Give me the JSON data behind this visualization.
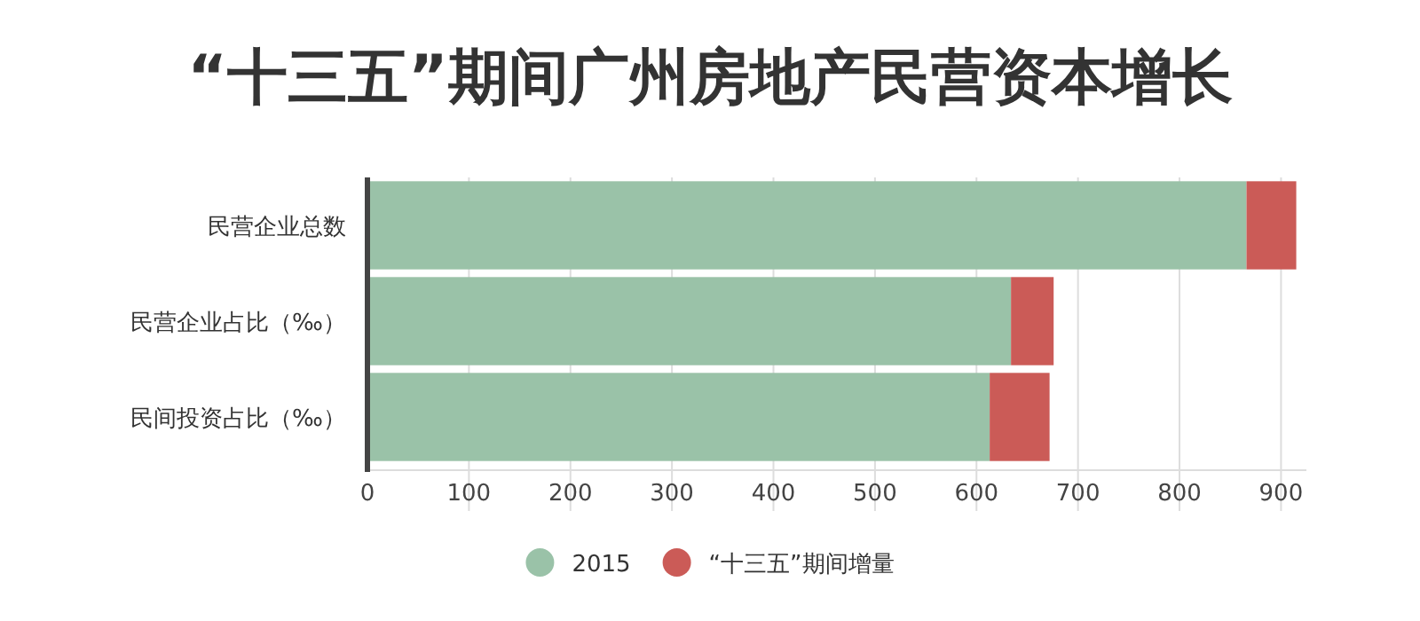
{
  "chart_data": {
    "type": "bar",
    "orientation": "horizontal",
    "stacked": true,
    "title": "“十三五”期间广州房地产民营资本增长",
    "categories": [
      "民营企业总数",
      "民营企业占比（‰）",
      "民间投资占比（‰）"
    ],
    "series": [
      {
        "name": "2015",
        "color": "#9ac2a8",
        "values": [
          866,
          634,
          613
        ]
      },
      {
        "name": "“十三五”期间增量",
        "color": "#cb5b57",
        "values": [
          49,
          42,
          59
        ]
      }
    ],
    "xlim": [
      0,
      925
    ],
    "xticks": [
      0,
      100,
      200,
      300,
      400,
      500,
      600,
      700,
      800,
      900
    ],
    "grid": "x",
    "legend": "bottom"
  }
}
